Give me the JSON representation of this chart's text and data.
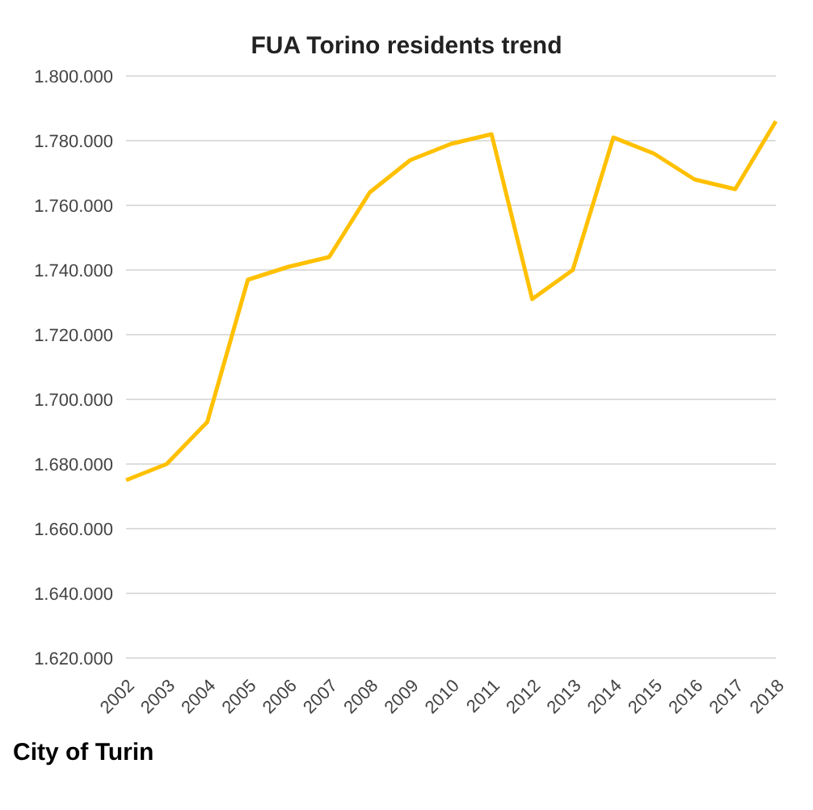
{
  "chart_data": {
    "type": "line",
    "title": "FUA Torino residents trend",
    "categories": [
      "2002",
      "2003",
      "2004",
      "2005",
      "2006",
      "2007",
      "2008",
      "2009",
      "2010",
      "2011",
      "2012",
      "2013",
      "2014",
      "2015",
      "2016",
      "2017",
      "2018"
    ],
    "series": [
      {
        "color": "#ffc000",
        "values": [
          1675000,
          1680000,
          1693000,
          1737000,
          1741000,
          1744000,
          1764000,
          1774000,
          1779000,
          1782000,
          1731000,
          1740000,
          1781000,
          1776000,
          1768000,
          1765000,
          1786000
        ]
      }
    ],
    "ylim": [
      1620000,
      1800000
    ],
    "yticks": [
      {
        "value": 1620000,
        "label": "1.620.000"
      },
      {
        "value": 1640000,
        "label": "1.640.000"
      },
      {
        "value": 1660000,
        "label": "1.660.000"
      },
      {
        "value": 1680000,
        "label": "1.680.000"
      },
      {
        "value": 1700000,
        "label": "1.700.000"
      },
      {
        "value": 1720000,
        "label": "1.720.000"
      },
      {
        "value": 1740000,
        "label": "1.740.000"
      },
      {
        "value": 1760000,
        "label": "1.760.000"
      },
      {
        "value": 1780000,
        "label": "1.780.000"
      },
      {
        "value": 1800000,
        "label": "1.800.000"
      }
    ],
    "grid": "y",
    "marker": "none",
    "legend": false,
    "annotations": [
      "City of Turin"
    ]
  }
}
